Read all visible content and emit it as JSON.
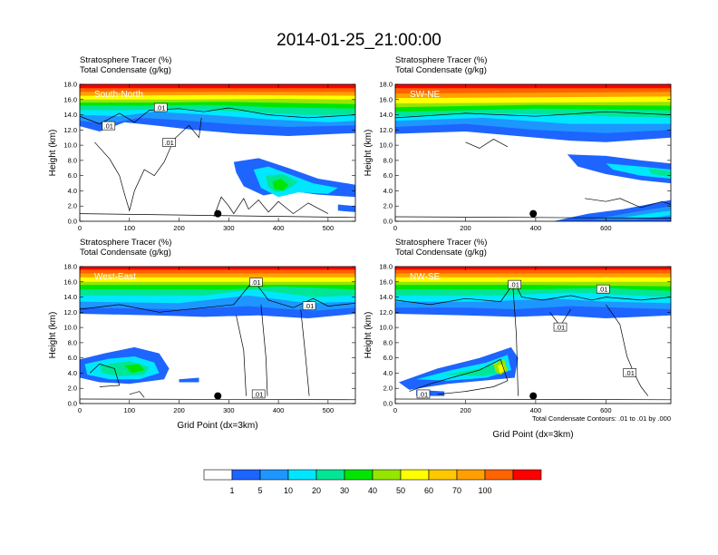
{
  "title": "2014-01-25_21:00:00",
  "colors": {
    "levels": [
      "#ffffff",
      "#1e64ff",
      "#1e96ff",
      "#00e6ff",
      "#00e696",
      "#00e600",
      "#96e600",
      "#ffff00",
      "#ffc800",
      "#ffa000",
      "#ff6400",
      "#ff0000"
    ],
    "contour": "#000000",
    "marker": "#000000"
  },
  "chart_data": [
    {
      "type": "heatmap",
      "panel_label": "South-North",
      "subtitle_line1": "Stratosphere Tracer   (%)",
      "subtitle_line2": "Total Condensate   (g/kg)",
      "ylabel": "Height (km)",
      "xlabel": "",
      "xlim": [
        0,
        555
      ],
      "ylim": [
        0,
        18
      ],
      "xticks": [
        "0",
        "100",
        "200",
        "300",
        "400",
        "500"
      ],
      "yticks": [
        "0.0",
        "2.0",
        "4.0",
        "6.0",
        "8.0",
        "10.0",
        "12.0",
        "14.0",
        "16.0",
        "18.0"
      ],
      "contour_labels": [
        {
          "text": ".01",
          "x": 58,
          "y": 12.5
        },
        {
          "text": ".01",
          "x": 163,
          "y": 14.9
        },
        {
          "text": ".01",
          "x": 180,
          "y": 10.3
        }
      ],
      "marker": {
        "x": 278,
        "y": 1.0
      }
    },
    {
      "type": "heatmap",
      "panel_label": "SW-NE",
      "subtitle_line1": "Stratosphere Tracer   (%)",
      "subtitle_line2": "Total Condensate   (g/kg)",
      "ylabel": "Height (km)",
      "xlabel": "",
      "xlim": [
        0,
        785
      ],
      "ylim": [
        0,
        18
      ],
      "xticks": [
        "0",
        "200",
        "400",
        "600"
      ],
      "yticks": [
        "0.0",
        "2.0",
        "4.0",
        "6.0",
        "8.0",
        "10.0",
        "12.0",
        "14.0",
        "16.0",
        "18.0"
      ],
      "contour_labels": [],
      "marker": {
        "x": 393,
        "y": 1.0
      }
    },
    {
      "type": "heatmap",
      "panel_label": "West-East",
      "subtitle_line1": "Stratosphere Tracer   (%)",
      "subtitle_line2": "Total Condensate   (g/kg)",
      "ylabel": "Height (km)",
      "xlabel": "Grid Point (dx=3km)",
      "xlim": [
        0,
        555
      ],
      "ylim": [
        0,
        18
      ],
      "xticks": [
        "0",
        "100",
        "200",
        "300",
        "400",
        "500"
      ],
      "yticks": [
        "0.0",
        "2.0",
        "4.0",
        "6.0",
        "8.0",
        "10.0",
        "12.0",
        "14.0",
        "16.0",
        "18.0"
      ],
      "contour_labels": [
        {
          "text": ".01",
          "x": 355,
          "y": 15.9
        },
        {
          "text": ".01",
          "x": 462,
          "y": 12.8
        },
        {
          "text": ".01",
          "x": 360,
          "y": 1.2
        }
      ],
      "marker": {
        "x": 278,
        "y": 1.0
      }
    },
    {
      "type": "heatmap",
      "panel_label": "NW-SE",
      "subtitle_line1": "Stratosphere Tracer   (%)",
      "subtitle_line2": "Total Condensate   (g/kg)",
      "ylabel": "Height (km)",
      "xlabel": "Grid Point (dx=3km)",
      "xlim": [
        0,
        785
      ],
      "ylim": [
        0,
        18
      ],
      "xticks": [
        "0",
        "200",
        "400",
        "600"
      ],
      "yticks": [
        "0.0",
        "2.0",
        "4.0",
        "6.0",
        "8.0",
        "10.0",
        "12.0",
        "14.0",
        "16.0",
        "18.0"
      ],
      "contour_labels": [
        {
          "text": ".01",
          "x": 340,
          "y": 15.6
        },
        {
          "text": ".01",
          "x": 592,
          "y": 15.0
        },
        {
          "text": ".01",
          "x": 470,
          "y": 10.0
        },
        {
          "text": ".01",
          "x": 668,
          "y": 4.0
        },
        {
          "text": ".01",
          "x": 80,
          "y": 1.2
        }
      ],
      "marker": {
        "x": 393,
        "y": 1.0
      },
      "footnote": "Total Condensate Contours: .01 to .01 by .000"
    }
  ],
  "legend": {
    "labels": [
      "1",
      "5",
      "10",
      "20",
      "30",
      "40",
      "50",
      "60",
      "70",
      "100"
    ]
  }
}
